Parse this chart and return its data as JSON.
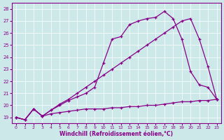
{
  "xlabel": "Windchill (Refroidissement éolien,°C)",
  "bg_color": "#cce8e8",
  "line_color": "#880088",
  "xlim": [
    -0.5,
    23.5
  ],
  "ylim": [
    18.5,
    28.5
  ],
  "yticks": [
    19,
    20,
    21,
    22,
    23,
    24,
    25,
    26,
    27,
    28
  ],
  "xticks": [
    0,
    1,
    2,
    3,
    4,
    5,
    6,
    7,
    8,
    9,
    10,
    11,
    12,
    13,
    14,
    15,
    16,
    17,
    18,
    19,
    20,
    21,
    22,
    23
  ],
  "line1_x": [
    0,
    1,
    2,
    3,
    4,
    5,
    6,
    7,
    8,
    9,
    10,
    11,
    12,
    13,
    14,
    15,
    16,
    17,
    18,
    19,
    20,
    21,
    22,
    23
  ],
  "line1_y": [
    19.0,
    18.8,
    19.7,
    19.1,
    19.3,
    19.4,
    19.5,
    19.6,
    19.7,
    19.7,
    19.7,
    19.8,
    19.8,
    19.9,
    19.9,
    20.0,
    20.0,
    20.1,
    20.2,
    20.3,
    20.3,
    20.4,
    20.4,
    20.5
  ],
  "line2_x": [
    0,
    1,
    2,
    3,
    4,
    5,
    6,
    7,
    8,
    9,
    10,
    11,
    12,
    13,
    14,
    15,
    16,
    17,
    18,
    19,
    20,
    21,
    22,
    23
  ],
  "line2_y": [
    19.0,
    18.8,
    19.7,
    19.1,
    19.6,
    20.1,
    20.5,
    21.0,
    21.5,
    22.0,
    22.5,
    23.0,
    23.5,
    24.0,
    24.5,
    25.0,
    25.5,
    26.0,
    26.5,
    27.0,
    27.2,
    25.5,
    23.2,
    20.5
  ],
  "line3_x": [
    0,
    1,
    2,
    3,
    4,
    5,
    6,
    7,
    8,
    9,
    10,
    11,
    12,
    13,
    14,
    15,
    16,
    17,
    18,
    19,
    20,
    21,
    22,
    23
  ],
  "line3_y": [
    19.0,
    18.8,
    19.7,
    19.1,
    19.6,
    20.0,
    20.4,
    20.7,
    21.0,
    21.5,
    23.5,
    25.5,
    25.7,
    26.7,
    27.0,
    27.2,
    27.3,
    27.8,
    27.2,
    25.5,
    22.8,
    21.7,
    21.5,
    20.5
  ]
}
